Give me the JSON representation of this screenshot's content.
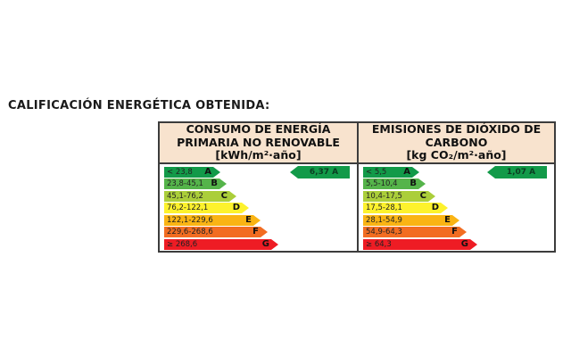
{
  "page": {
    "title": "CALIFICACIÓN ENERGÉTICA OBTENIDA:"
  },
  "colors": {
    "a": "#129a49",
    "b": "#55b44a",
    "c": "#abce3a",
    "d": "#fdf22d",
    "e": "#fab414",
    "f": "#f26d22",
    "g": "#ee1c24",
    "indicator": "#129a49",
    "header_bg": "#f8e3ce",
    "border": "#3c3c3c"
  },
  "panels": [
    {
      "header_lines": [
        "CONSUMO DE ENERGÍA",
        "PRIMARIA NO RENOVABLE"
      ],
      "unit": "[kWh/m²·año]",
      "rows": [
        {
          "letter": "A",
          "range": "< 23,8"
        },
        {
          "letter": "B",
          "range": "23,8-45,1"
        },
        {
          "letter": "C",
          "range": "45,1-76,2"
        },
        {
          "letter": "D",
          "range": "76,2-122,1"
        },
        {
          "letter": "E",
          "range": "122,1-229,6"
        },
        {
          "letter": "F",
          "range": "229,6-268,6"
        },
        {
          "letter": "G",
          "range": "≥ 268,6"
        }
      ],
      "indicator": "6,37 A"
    },
    {
      "header_lines": [
        "EMISIONES DE DIÓXIDO DE",
        "CARBONO"
      ],
      "unit": "[kg CO₂/m²·año]",
      "rows": [
        {
          "letter": "A",
          "range": "< 5,5"
        },
        {
          "letter": "B",
          "range": "5,5-10,4"
        },
        {
          "letter": "C",
          "range": "10,4-17,5"
        },
        {
          "letter": "D",
          "range": "17,5-28,1"
        },
        {
          "letter": "E",
          "range": "28,1-54,9"
        },
        {
          "letter": "F",
          "range": "54,9-64,3"
        },
        {
          "letter": "G",
          "range": "≥ 64,3"
        }
      ],
      "indicator": "1,07 A"
    }
  ],
  "chart_data": [
    {
      "type": "bar",
      "title": "CONSUMO DE ENERGÍA PRIMARIA NO RENOVABLE",
      "unit": "kWh/m²·año",
      "categories": [
        "A",
        "B",
        "C",
        "D",
        "E",
        "F",
        "G"
      ],
      "ranges": [
        "< 23,8",
        "23,8-45,1",
        "45,1-76,2",
        "76,2-122,1",
        "122,1-229,6",
        "229,6-268,6",
        "≥ 268,6"
      ],
      "bar_relative_widths": [
        63,
        70,
        81,
        95,
        108,
        116,
        128
      ],
      "obtained_value": 6.37,
      "obtained_rating": "A",
      "legend_position": "none",
      "grid": false
    },
    {
      "type": "bar",
      "title": "EMISIONES DE DIÓXIDO DE CARBONO",
      "unit": "kg CO₂/m²·año",
      "categories": [
        "A",
        "B",
        "C",
        "D",
        "E",
        "F",
        "G"
      ],
      "ranges": [
        "< 5,5",
        "5,5-10,4",
        "10,4-17,5",
        "17,5-28,1",
        "28,1-54,9",
        "54,9-64,3",
        "≥ 64,3"
      ],
      "bar_relative_widths": [
        63,
        70,
        81,
        95,
        108,
        116,
        128
      ],
      "obtained_value": 1.07,
      "obtained_rating": "A",
      "legend_position": "none",
      "grid": false
    }
  ]
}
